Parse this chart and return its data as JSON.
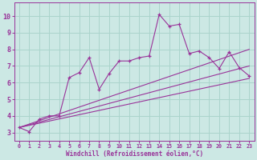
{
  "background_color": "#cce8e4",
  "grid_color": "#aad4cc",
  "line_color": "#993399",
  "xlabel": "Windchill (Refroidissement éolien,°C)",
  "xlim": [
    -0.5,
    23.5
  ],
  "ylim": [
    2.5,
    10.8
  ],
  "yticks": [
    3,
    4,
    5,
    6,
    7,
    8,
    9,
    10
  ],
  "xticks": [
    0,
    1,
    2,
    3,
    4,
    5,
    6,
    7,
    8,
    9,
    10,
    11,
    12,
    13,
    14,
    15,
    16,
    17,
    18,
    19,
    20,
    21,
    22,
    23
  ],
  "series_jagged_x": [
    0,
    1,
    2,
    3,
    4,
    5,
    6,
    7,
    8,
    9,
    10,
    11,
    12,
    13,
    14,
    15,
    16,
    17,
    18,
    19,
    20,
    21,
    22,
    23
  ],
  "series_jagged_y": [
    3.3,
    3.05,
    3.8,
    4.0,
    4.0,
    6.3,
    6.6,
    7.5,
    5.6,
    6.55,
    7.3,
    7.3,
    7.5,
    7.6,
    10.1,
    9.4,
    9.5,
    7.75,
    7.9,
    7.5,
    6.85,
    7.85,
    6.9,
    6.4
  ],
  "line1_x": [
    0,
    23
  ],
  "line1_y": [
    3.3,
    8.0
  ],
  "line2_x": [
    0,
    23
  ],
  "line2_y": [
    3.3,
    7.0
  ],
  "line3_x": [
    0,
    23
  ],
  "line3_y": [
    3.3,
    6.25
  ]
}
